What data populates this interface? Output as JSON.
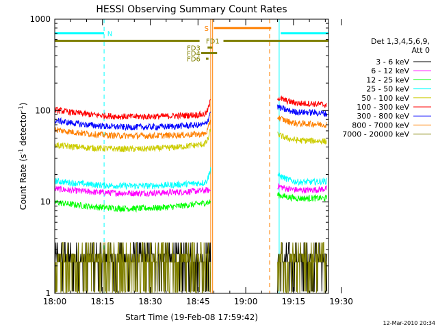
{
  "chart_data": {
    "type": "line",
    "title": "HESSI Observing Summary Count Rates",
    "xlabel": "Start Time (19-Feb-08 17:59:42)",
    "ylabel_main": "Count Rate (s",
    "ylabel_sup1": "-1",
    "ylabel_mid": " detector",
    "ylabel_sup2": "-1",
    "ylabel_end": ")",
    "y_scale": "log",
    "ylim": [
      1,
      1000
    ],
    "x_ticks": [
      "18:00",
      "18:15",
      "18:30",
      "18:45",
      "19:00",
      "19:15",
      "19:30"
    ],
    "x_tick_minutes": [
      0,
      15,
      30,
      45,
      60,
      75,
      90
    ],
    "xlim_minutes": [
      0,
      86
    ],
    "y_ticks": [
      "1",
      "10",
      "100",
      "1000"
    ],
    "y_tick_values": [
      1,
      10,
      100,
      1000
    ],
    "legend_title_1": "Det 1,3,4,5,6,9,",
    "legend_title_2": "Att 0",
    "legend_position": "right",
    "gap_minutes": [
      49,
      70
    ],
    "series": [
      {
        "name": "3 - 6 keV",
        "color": "#000000",
        "before": [
          3.3,
          3.3,
          3.3
        ],
        "after": [
          3.3,
          3.3,
          3.3
        ]
      },
      {
        "name": "6 - 12 keV",
        "color": "#ff00ff",
        "before": [
          14,
          12.5,
          13.5
        ],
        "after": [
          15,
          13.5,
          14
        ]
      },
      {
        "name": "12 - 25 keV",
        "color": "#00ff00",
        "before": [
          10,
          8.5,
          10
        ],
        "after": [
          12,
          11,
          11
        ]
      },
      {
        "name": "25 - 50 keV",
        "color": "#00ffff",
        "before": [
          17,
          15,
          16.5
        ],
        "after": [
          20,
          16.5,
          17
        ]
      },
      {
        "name": "50 - 100 keV",
        "color": "#cccc00",
        "before": [
          42,
          38,
          44
        ],
        "after": [
          55,
          47,
          46
        ]
      },
      {
        "name": "100 - 300 keV",
        "color": "#ff0000",
        "before": [
          102,
          86,
          92
        ],
        "after": [
          140,
          120,
          115
        ]
      },
      {
        "name": "300 - 800 keV",
        "color": "#0000ff",
        "before": [
          78,
          66,
          71
        ],
        "after": [
          110,
          96,
          92
        ]
      },
      {
        "name": "800 - 7000 keV",
        "color": "#ff8000",
        "before": [
          62,
          53,
          56
        ],
        "after": [
          85,
          72,
          70
        ]
      },
      {
        "name": "7000 - 20000 keV",
        "color": "#808000",
        "before": [
          2.5,
          2.2,
          2.5
        ],
        "after": [
          2.5,
          2.5,
          2.5
        ]
      }
    ],
    "flags": [
      {
        "label": "N",
        "color": "#00ffff",
        "row_value": 700,
        "segments": [
          [
            0,
            15.5
          ],
          [
            71,
            86
          ]
        ],
        "label_minute": 16.5
      },
      {
        "label": "S",
        "color": "#ff8000",
        "row_value": 800,
        "segments": [
          [
            50,
            68
          ]
        ],
        "label_minute": 47
      },
      {
        "label": "FD1",
        "color": "#808000",
        "row_value": 580,
        "segments": [
          [
            0,
            45.5
          ],
          [
            53,
            86
          ]
        ],
        "label_minute": 47.5
      },
      {
        "label": "FD3",
        "color": "#808000",
        "row_value": 490,
        "segments": [
          [
            48,
            49.5
          ]
        ],
        "label_minute": 41.5
      },
      {
        "label": "FD4",
        "color": "#808000",
        "row_value": 425,
        "segments": [
          [
            46,
            51
          ]
        ],
        "label_minute": 41.5
      },
      {
        "label": "FD6",
        "color": "#808000",
        "row_value": 370,
        "segments": [
          [
            47.5,
            48.3
          ]
        ],
        "label_minute": 41.5
      }
    ],
    "vlines": [
      {
        "minute": 0,
        "color": "#00ffff",
        "style": "solid"
      },
      {
        "minute": 15.5,
        "color": "#00ffff",
        "style": "dashed"
      },
      {
        "minute": 49,
        "color": "#ff8000",
        "style": "solid"
      },
      {
        "minute": 49.6,
        "color": "#ff8000",
        "style": "solid"
      },
      {
        "minute": 67.5,
        "color": "#ff8000",
        "style": "dashed"
      },
      {
        "minute": 70.5,
        "color": "#00ffff",
        "style": "solid"
      },
      {
        "minute": 86,
        "color": "#00ffff",
        "style": "dashed"
      }
    ]
  },
  "footer": {
    "date": "12-Mar-2010 20:34"
  }
}
